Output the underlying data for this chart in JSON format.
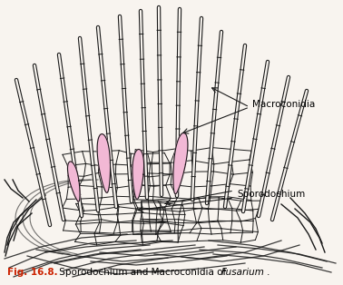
{
  "caption_bold": "Fig. 16.8.",
  "caption_normal": " Sporodochium and Macroconidia of ",
  "caption_italic": "Fusarium",
  "caption_end": ".",
  "label_macroconidia": "Macroconidia",
  "label_sporodochium": "Sporodochium",
  "bg_color": "#f8f4ef",
  "line_color": "#1a1a1a",
  "fill_pink": "#f2b8d5",
  "caption_color": "#cc2200",
  "fig_width": 3.78,
  "fig_height": 3.14,
  "dpi": 100
}
